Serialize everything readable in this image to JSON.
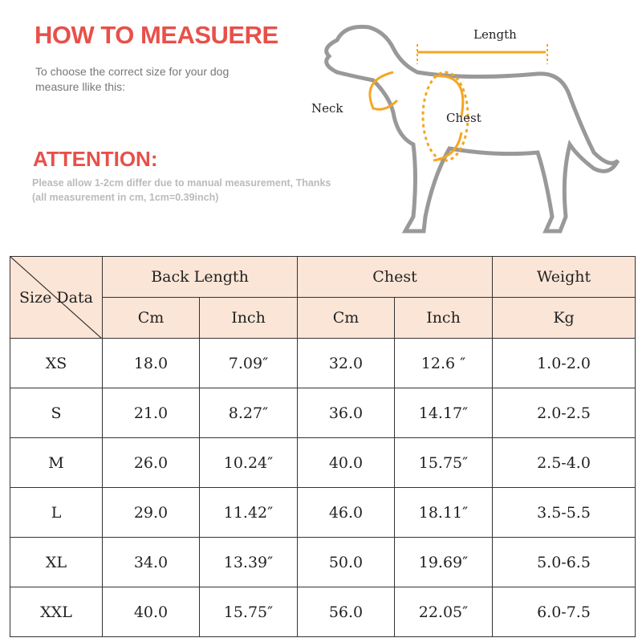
{
  "header": {
    "title": "HOW TO MEASUERE",
    "subtitle": "To choose the correct size for your dog measure llike this:",
    "attention": "ATTENTION:",
    "note": "Please allow 1-2cm differ due to manual measurement, Thanks (all measurement in cm, 1cm=0.39inch)"
  },
  "diagram": {
    "length": "Length",
    "neck": "Neck",
    "chest": "Chest",
    "accent": "#f5a623",
    "outline": "#999999"
  },
  "table": {
    "corner": "Size Data",
    "groups": [
      "Back Length",
      "Chest",
      "Weight"
    ],
    "units": [
      "Cm",
      "Inch",
      "Cm",
      "Inch",
      "Kg"
    ],
    "header_bg": "#fbe5d6",
    "rows": [
      [
        "XS",
        "18.0",
        "7.09″",
        "32.0",
        "12.6 ″",
        "1.0-2.0"
      ],
      [
        "S",
        "21.0",
        "8.27″",
        "36.0",
        "14.17″",
        "2.0-2.5"
      ],
      [
        "M",
        "26.0",
        "10.24″",
        "40.0",
        "15.75″",
        "2.5-4.0"
      ],
      [
        "L",
        "29.0",
        "11.42″",
        "46.0",
        "18.11″",
        "3.5-5.5"
      ],
      [
        "XL",
        "34.0",
        "13.39″",
        "50.0",
        "19.69″",
        "5.0-6.5"
      ],
      [
        "XXL",
        "40.0",
        "15.75″",
        "56.0",
        "22.05″",
        "6.0-7.5"
      ]
    ]
  }
}
